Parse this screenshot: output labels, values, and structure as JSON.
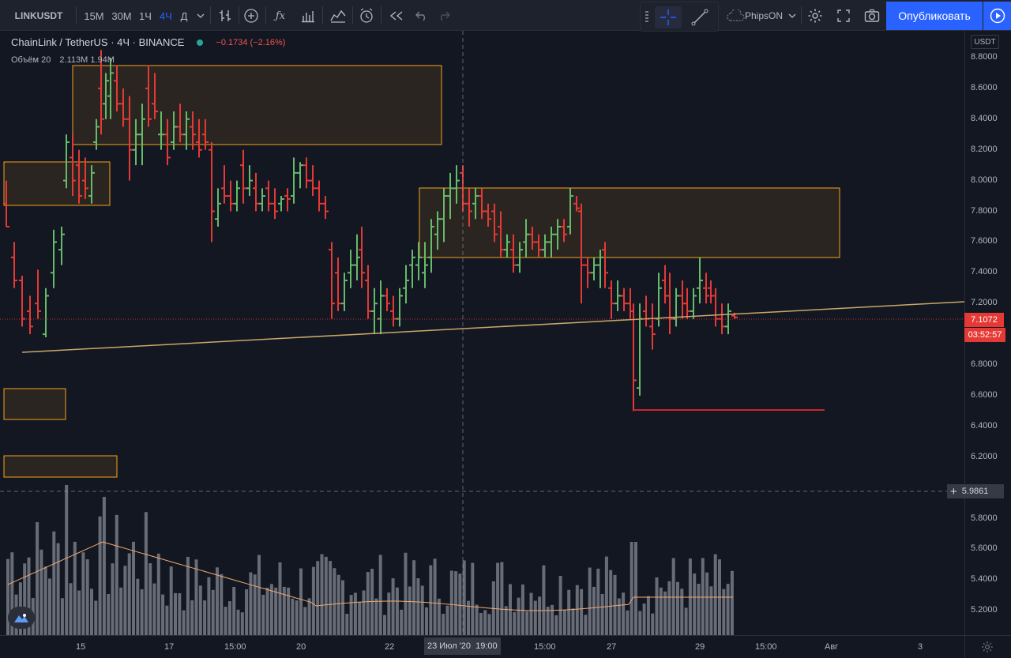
{
  "topbar": {
    "symbol": "LINKUSDT",
    "intervals": [
      "15М",
      "30М",
      "1Ч",
      "4Ч",
      "Д"
    ],
    "active_interval": "4Ч",
    "profile": "PhipsON",
    "publish_label": "Опубликовать",
    "icons": [
      "chevron-down-icon",
      "bar-style-icon",
      "indicator-add-icon",
      "fx-icon",
      "compare-icon",
      "templates-icon",
      "alert-icon",
      "replay-icon",
      "undo-icon",
      "redo-icon",
      "crosshair-icon",
      "trendline-icon",
      "cloud-icon",
      "settings-icon",
      "fullscreen-icon",
      "camera-icon",
      "play-icon"
    ]
  },
  "legend": {
    "title": "ChainLink / TetherUS · 4Ч · BINANCE",
    "change": "−0.1734 (−2.16%)",
    "volume_label": "Объём 20",
    "volume_values": "2.113M  1.94M"
  },
  "price_axis": {
    "currency": "USDT",
    "ticks": [
      "8.8000",
      "8.6000",
      "8.4000",
      "8.2000",
      "8.0000",
      "7.8000",
      "7.6000",
      "7.4000",
      "7.2000",
      "6.8000",
      "6.6000",
      "6.4000",
      "6.2000",
      "5.8000",
      "5.6000",
      "5.4000",
      "5.2000"
    ],
    "tick_values": [
      8.8,
      8.6,
      8.4,
      8.2,
      8.0,
      7.8,
      7.6,
      7.4,
      7.2,
      6.8,
      6.6,
      6.4,
      6.2,
      5.8,
      5.6,
      5.4,
      5.2
    ],
    "last_price": "7.1072",
    "countdown": "03:52:57",
    "crosshair_price": "5.9861"
  },
  "time_axis": {
    "labels": [
      "15",
      "17",
      "15:00",
      "20",
      "22",
      "15:00",
      "27",
      "29",
      "15:00",
      "Авг",
      "3"
    ],
    "crosshair_time": "23 Июл '20  19:00"
  },
  "colors": {
    "up": "#66bb6a",
    "down": "#e53935",
    "box_border": "#f7a21b",
    "trendline": "#c9a86a",
    "accent": "#2962ff",
    "volume": "#787b86"
  },
  "chart_data": {
    "type": "ohlc",
    "price_range": [
      5.1,
      8.95
    ],
    "last_price": 7.1072,
    "support_level": 6.51,
    "volume_series_name": "Объём 20"
  }
}
